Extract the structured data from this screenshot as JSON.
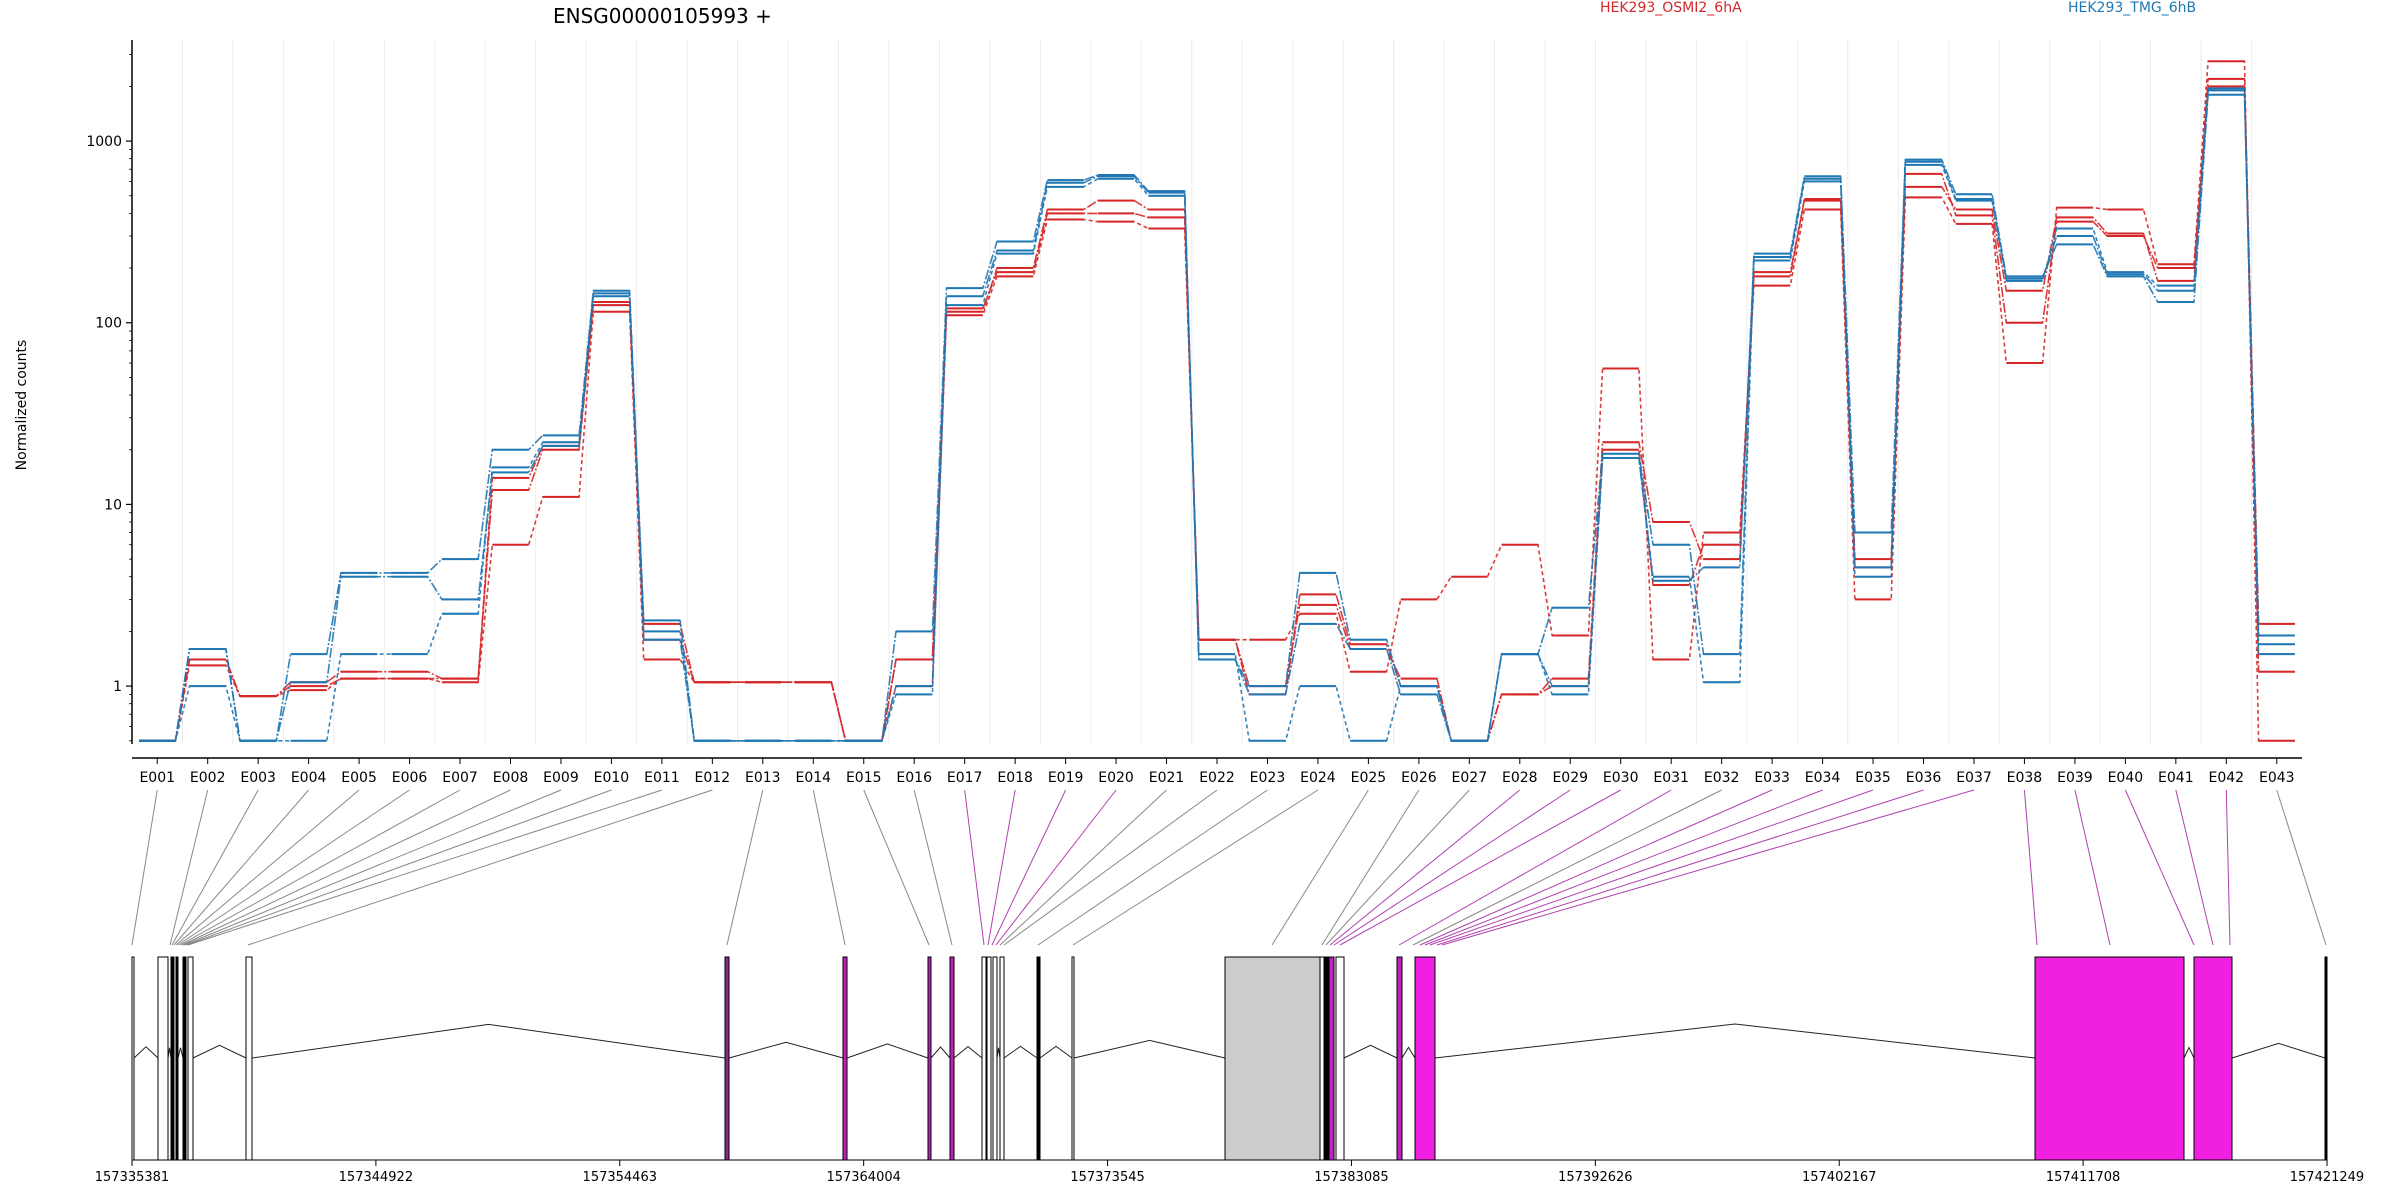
{
  "chart_data": {
    "type": "line",
    "title": "ENSG00000105993 +",
    "ylabel": "Normalized counts",
    "y_scale": "log",
    "ylim": [
      0.48,
      3600
    ],
    "y_ticks": [
      {
        "value": 1,
        "label": "1"
      },
      {
        "value": 10,
        "label": "10"
      },
      {
        "value": 100,
        "label": "100"
      },
      {
        "value": 1000,
        "label": "1000"
      }
    ],
    "categories": [
      "E001",
      "E002",
      "E003",
      "E004",
      "E005",
      "E006",
      "E007",
      "E008",
      "E009",
      "E010",
      "E011",
      "E012",
      "E013",
      "E014",
      "E015",
      "E016",
      "E017",
      "E018",
      "E019",
      "E020",
      "E021",
      "E022",
      "E023",
      "E024",
      "E025",
      "E026",
      "E027",
      "E028",
      "E029",
      "E030",
      "E031",
      "E032",
      "E033",
      "E034",
      "E035",
      "E036",
      "E037",
      "E038",
      "E039",
      "E040",
      "E041",
      "E042",
      "E043"
    ],
    "series": [
      {
        "name": "HEK293_OSMI2_6hA",
        "color": "#d62728",
        "values": [
          0.5,
          1.4,
          0.88,
          1.05,
          1.2,
          1.2,
          1.1,
          14,
          21,
          130,
          2.2,
          1.05,
          1.05,
          1.05,
          0.5,
          1.4,
          115,
          200,
          420,
          470,
          420,
          1.8,
          0.9,
          3.2,
          1.7,
          1.0,
          0.5,
          0.9,
          1.0,
          20,
          3.6,
          6.0,
          180,
          480,
          5.0,
          560,
          420,
          150,
          380,
          310,
          170,
          2200,
          2.2
        ]
      },
      {
        "name": "HEK293_OSMI2_6hA",
        "color": "#d62728",
        "values": [
          0.5,
          1.3,
          0.88,
          0.95,
          1.1,
          1.1,
          1.05,
          6.0,
          11,
          115,
          1.4,
          1.05,
          1.05,
          1.05,
          0.5,
          1.0,
          110,
          180,
          370,
          360,
          330,
          1.8,
          1.8,
          2.5,
          1.2,
          3.0,
          4.0,
          6.0,
          1.9,
          56,
          1.4,
          7.0,
          160,
          420,
          3.0,
          490,
          350,
          60,
          430,
          420,
          210,
          2750,
          0.5
        ]
      },
      {
        "name": "HEK293_OSMI2_6hA",
        "color": "#d62728",
        "values": [
          0.5,
          1.4,
          0.88,
          1.0,
          1.1,
          1.1,
          1.1,
          12,
          20,
          125,
          1.8,
          1.05,
          1.05,
          1.05,
          0.5,
          1.4,
          120,
          190,
          400,
          400,
          380,
          1.8,
          1.0,
          2.8,
          1.6,
          1.1,
          0.5,
          0.9,
          1.1,
          22,
          8.0,
          5.0,
          190,
          470,
          4.5,
          660,
          390,
          100,
          360,
          300,
          200,
          2000,
          1.2
        ]
      },
      {
        "name": "HEK293_TMG_6hB",
        "color": "#1f77b4",
        "values": [
          0.5,
          1.6,
          0.5,
          1.5,
          4.2,
          4.2,
          5.0,
          20,
          24,
          150,
          2.3,
          0.5,
          0.5,
          0.5,
          0.5,
          2.0,
          155,
          280,
          610,
          650,
          530,
          1.4,
          1.0,
          4.2,
          1.8,
          1.0,
          0.5,
          1.5,
          2.7,
          19,
          6.0,
          1.5,
          240,
          640,
          7.0,
          790,
          510,
          180,
          270,
          180,
          130,
          1800,
          1.7
        ]
      },
      {
        "name": "HEK293_TMG_6hB",
        "color": "#1f77b4",
        "values": [
          0.5,
          1.0,
          0.5,
          0.5,
          1.5,
          1.5,
          2.5,
          16,
          22,
          140,
          2.0,
          0.5,
          0.5,
          0.5,
          0.5,
          0.9,
          125,
          240,
          560,
          620,
          500,
          1.5,
          0.5,
          1.0,
          0.5,
          1.0,
          0.5,
          1.5,
          0.9,
          18,
          4.0,
          1.05,
          220,
          600,
          4.0,
          740,
          470,
          170,
          330,
          190,
          160,
          1900,
          1.9
        ]
      },
      {
        "name": "HEK293_TMG_6hB",
        "color": "#1f77b4",
        "values": [
          0.5,
          1.6,
          0.5,
          1.05,
          4.0,
          4.0,
          3.0,
          15,
          21,
          145,
          1.8,
          0.5,
          0.5,
          0.5,
          0.5,
          1.0,
          140,
          250,
          590,
          640,
          520,
          1.4,
          0.9,
          2.2,
          1.6,
          0.9,
          0.5,
          1.5,
          1.0,
          18,
          3.8,
          4.5,
          230,
          620,
          4.5,
          770,
          480,
          175,
          300,
          185,
          150,
          1950,
          1.5
        ]
      }
    ],
    "gene_model": {
      "coordinate_ticks": [
        "157335381",
        "157344922",
        "157354463",
        "157364004",
        "157373545",
        "157383085",
        "157392626",
        "157402167",
        "157411708",
        "157421249"
      ]
    }
  }
}
